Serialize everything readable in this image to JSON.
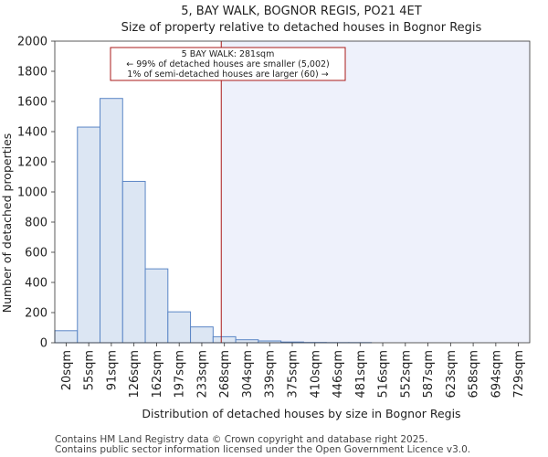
{
  "chart_data": {
    "type": "bar",
    "title": "5, BAY WALK, BOGNOR REGIS, PO21 4ET",
    "subtitle": "Size of property relative to detached houses in Bognor Regis",
    "xlabel": "Distribution of detached houses by size in Bognor Regis",
    "ylabel": "Number of detached properties",
    "ylim": [
      0,
      2000
    ],
    "yticks": [
      "0",
      "200",
      "400",
      "600",
      "800",
      "1000",
      "1200",
      "1400",
      "1600",
      "1800",
      "2000"
    ],
    "categories": [
      "20sqm",
      "55sqm",
      "91sqm",
      "126sqm",
      "162sqm",
      "197sqm",
      "233sqm",
      "268sqm",
      "304sqm",
      "339sqm",
      "375sqm",
      "410sqm",
      "446sqm",
      "481sqm",
      "516sqm",
      "552sqm",
      "587sqm",
      "623sqm",
      "658sqm",
      "694sqm",
      "729sqm"
    ],
    "values": [
      80,
      1430,
      1620,
      1070,
      490,
      205,
      105,
      40,
      20,
      12,
      5,
      2,
      1,
      1,
      0,
      0,
      0,
      0,
      0,
      0,
      0
    ],
    "marker": {
      "value_sqm": 281,
      "bin_position": 7.36,
      "label_line1": "5 BAY WALK: 281sqm",
      "label_line2": "← 99% of detached houses are smaller (5,002)",
      "label_line3": "1% of semi-detached houses are larger (60) →"
    },
    "colors": {
      "bar_fill": "#dce6f3",
      "bar_stroke": "#5b86c6",
      "highlight_bg": "#eef1fb",
      "marker_line": "#aa1a1a",
      "annot_border": "#aa1a1a"
    }
  },
  "footer": {
    "line1": "Contains HM Land Registry data © Crown copyright and database right 2025.",
    "line2": "Contains public sector information licensed under the Open Government Licence v3.0."
  }
}
